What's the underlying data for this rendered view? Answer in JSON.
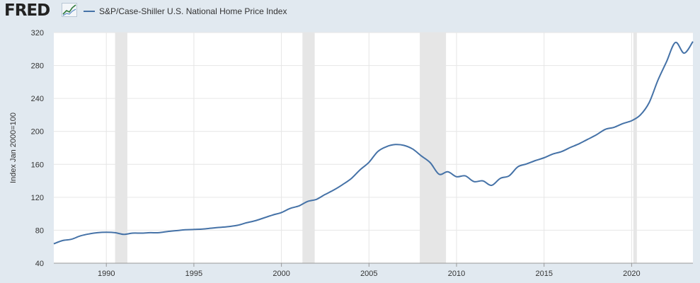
{
  "header": {
    "logo_text": "FRED",
    "logo_icon": "trend-line-icon"
  },
  "chart_data": {
    "type": "line",
    "title": "",
    "xlabel": "",
    "ylabel": "Index Jan 2000=100",
    "xlim": [
      1987.0,
      2023.5
    ],
    "ylim": [
      40,
      320
    ],
    "y_ticks": [
      40,
      80,
      120,
      160,
      200,
      240,
      280,
      320
    ],
    "x_ticks": [
      1990,
      1995,
      2000,
      2005,
      2010,
      2015,
      2020
    ],
    "grid": true,
    "legend": "top-left",
    "colors": {
      "line": "#4572a7",
      "recession": "#e6e6e6",
      "plot_bg": "#ffffff",
      "page_bg": "#e1e9f0"
    },
    "recessions": [
      {
        "start": 1990.5,
        "end": 1991.2
      },
      {
        "start": 2001.2,
        "end": 2001.9
      },
      {
        "start": 2007.9,
        "end": 2009.4
      },
      {
        "start": 2020.1,
        "end": 2020.3
      }
    ],
    "series": [
      {
        "name": "S&P/Case-Shiller U.S. National Home Price Index",
        "x": [
          1987.0,
          1987.5,
          1988.0,
          1988.5,
          1989.0,
          1989.5,
          1990.0,
          1990.5,
          1991.0,
          1991.5,
          1992.0,
          1992.5,
          1993.0,
          1993.5,
          1994.0,
          1994.5,
          1995.0,
          1995.5,
          1996.0,
          1996.5,
          1997.0,
          1997.5,
          1998.0,
          1998.5,
          1999.0,
          1999.5,
          2000.0,
          2000.5,
          2001.0,
          2001.5,
          2002.0,
          2002.5,
          2003.0,
          2003.5,
          2004.0,
          2004.5,
          2005.0,
          2005.5,
          2006.0,
          2006.5,
          2007.0,
          2007.5,
          2008.0,
          2008.5,
          2009.0,
          2009.5,
          2010.0,
          2010.5,
          2011.0,
          2011.5,
          2012.0,
          2012.5,
          2013.0,
          2013.5,
          2014.0,
          2014.5,
          2015.0,
          2015.5,
          2016.0,
          2016.5,
          2017.0,
          2017.5,
          2018.0,
          2018.5,
          2019.0,
          2019.5,
          2020.0,
          2020.5,
          2021.0,
          2021.5,
          2022.0,
          2022.5,
          2023.0,
          2023.5
        ],
        "values": [
          63.5,
          67.5,
          69,
          73,
          75.5,
          77,
          77.5,
          77,
          75,
          76.5,
          76.5,
          77,
          77,
          78.5,
          79.5,
          80.5,
          81,
          81.5,
          82.5,
          83.5,
          84.5,
          86,
          89,
          91.5,
          95,
          98.5,
          101.5,
          106.5,
          109.5,
          115,
          117.5,
          123.5,
          129,
          135.5,
          143,
          153.5,
          162.5,
          175.5,
          181.5,
          184,
          183,
          178.5,
          170,
          162,
          148,
          151,
          145,
          146,
          139,
          140,
          134.5,
          143,
          146,
          157,
          160.5,
          164.5,
          168,
          172.5,
          175.5,
          180.5,
          185,
          190.5,
          196,
          202.5,
          205,
          209.5,
          213,
          220,
          235,
          262,
          285,
          308,
          295,
          309
        ]
      }
    ]
  }
}
